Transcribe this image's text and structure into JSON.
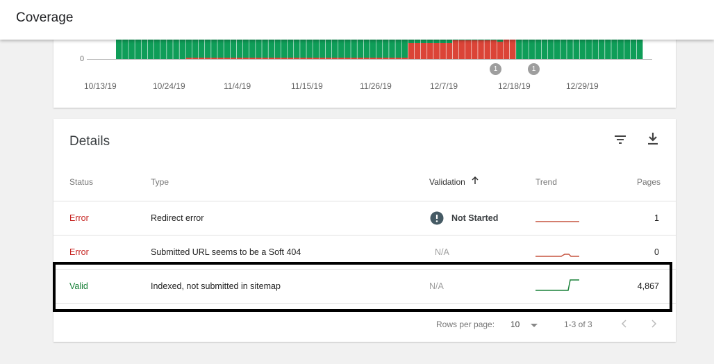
{
  "header": {
    "title": "Coverage"
  },
  "chart": {
    "y_tick": "0",
    "x_ticks": [
      "10/13/19",
      "10/24/19",
      "11/4/19",
      "11/15/19",
      "11/26/19",
      "12/7/19",
      "12/18/19",
      "12/29/19"
    ],
    "annotations": [
      "1",
      "1"
    ],
    "colors": {
      "valid": "#0f9d58",
      "error": "#db4437"
    }
  },
  "chart_data": {
    "type": "bar",
    "stacked": true,
    "x_range": [
      "10/15/19",
      "1/6/20"
    ],
    "series": [
      {
        "color": "#0f9d58",
        "from": "10/15/19",
        "to": "1/6/20"
      },
      {
        "color": "#db4437",
        "from": "11/30/19",
        "to": "12/17/19"
      }
    ],
    "annotation_dates": [
      "12/16/19",
      "12/22/19"
    ]
  },
  "details": {
    "title": "Details",
    "columns": {
      "status": "Status",
      "type": "Type",
      "validation": "Validation",
      "trend": "Trend",
      "pages": "Pages"
    },
    "rows": [
      {
        "status": "Error",
        "type": "Redirect error",
        "validation": "Not Started",
        "pages": "1"
      },
      {
        "status": "Error",
        "type": "Submitted URL seems to be a Soft 404",
        "validation": "N/A",
        "pages": "0"
      },
      {
        "status": "Valid",
        "type": "Indexed, not submitted in sitemap",
        "validation": "N/A",
        "pages": "4,867"
      }
    ],
    "pagination": {
      "rows_label": "Rows per page:",
      "rows_value": "10",
      "range": "1-3 of 3"
    }
  }
}
